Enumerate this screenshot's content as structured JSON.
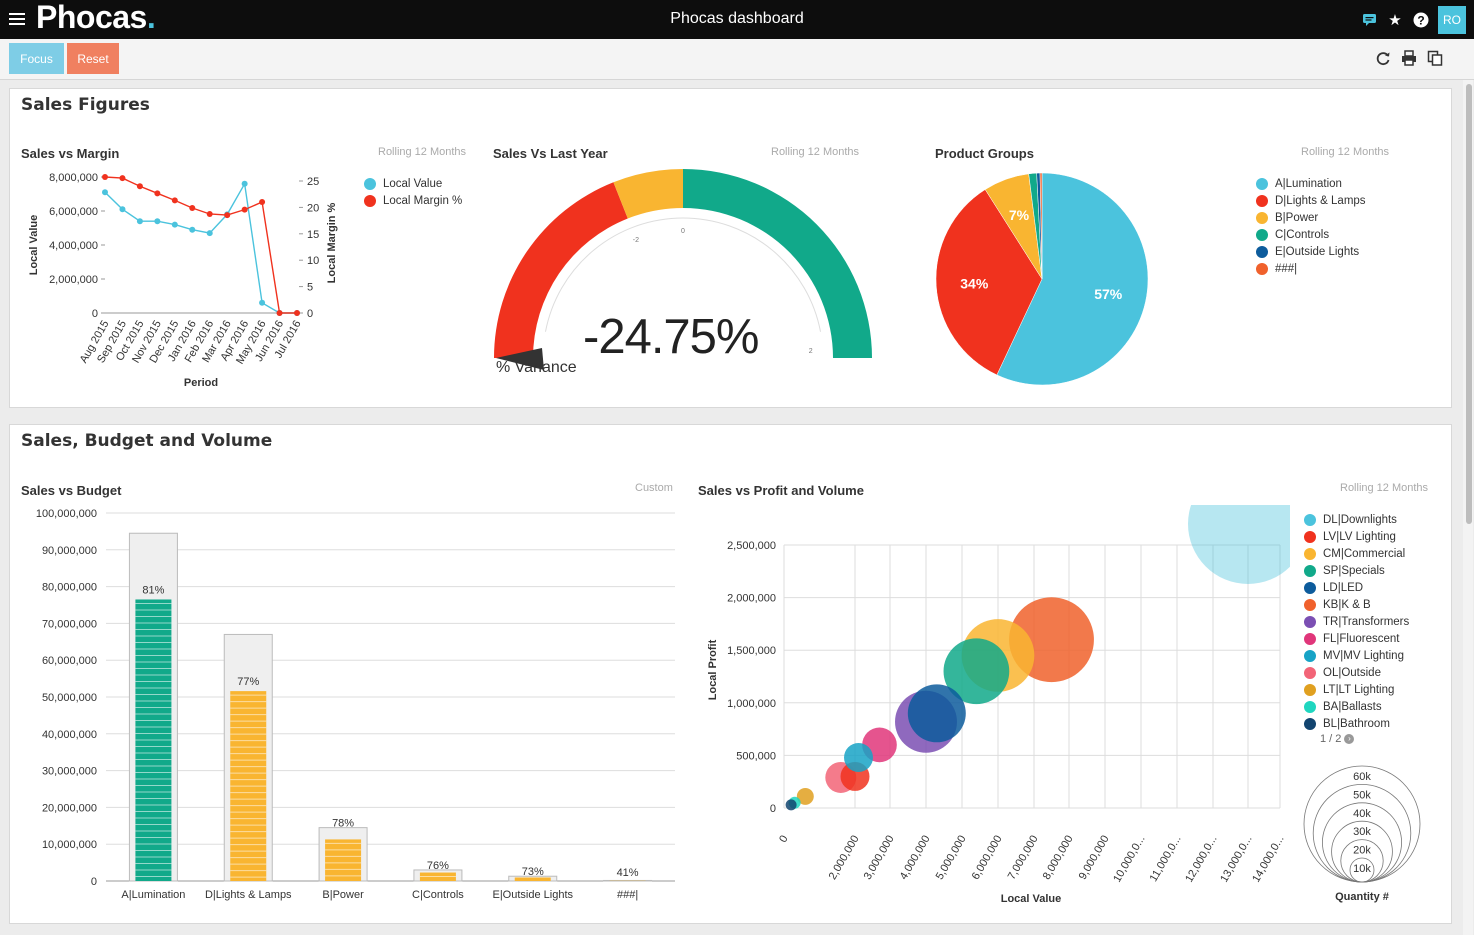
{
  "app": {
    "logo_text": "Phocas",
    "logo_dot": ".",
    "title": "Phocas dashboard",
    "user_initials": "RO",
    "toolbar": {
      "focus_label": "Focus",
      "reset_label": "Reset"
    },
    "icons": [
      "menu-icon",
      "chat-icon",
      "star-icon",
      "help-icon",
      "refresh-icon",
      "print-icon",
      "copy-icon"
    ],
    "colors": {
      "topbar": "#0d0d0d",
      "accent": "#4bc3dd",
      "focus": "#7ecde6",
      "reset": "#f08060"
    }
  },
  "sections": {
    "sales_figures": "Sales Figures",
    "sales_budget_volume": "Sales, Budget and Volume"
  },
  "widgets": {
    "sales_margin": {
      "title": "Sales vs Margin",
      "note": "Rolling 12 Months"
    },
    "sales_last_year": {
      "title": "Sales Vs Last Year",
      "note": "Rolling 12 Months"
    },
    "product_groups": {
      "title": "Product Groups",
      "note": "Rolling 12 Months"
    },
    "sales_budget": {
      "title": "Sales vs Budget",
      "note": "Custom"
    },
    "profit_volume": {
      "title": "Sales vs Profit and Volume",
      "note": "Rolling 12 Months",
      "pager": "1 / 2"
    }
  },
  "chart_data": [
    {
      "id": "sales_margin",
      "type": "line",
      "title": "Sales vs Margin",
      "xlabel": "Period",
      "ylabel": "Local Value",
      "y2label": "Local Margin %",
      "categories": [
        "Aug 2015",
        "Sep 2015",
        "Oct 2015",
        "Nov 2015",
        "Dec 2015",
        "Jan 2016",
        "Feb 2016",
        "Mar 2016",
        "Apr 2016",
        "May 2016",
        "Jun 2016",
        "Jul 2016"
      ],
      "ylim": [
        0,
        8000000
      ],
      "y_ticks": [
        "8,000,000",
        "6,000,000",
        "4,000,000",
        "2,000,000",
        "0"
      ],
      "y2lim": [
        0,
        25
      ],
      "y2_ticks": [
        "25",
        "20",
        "15",
        "10",
        "5",
        "0"
      ],
      "series": [
        {
          "name": "Local Value",
          "color": "#4bc3dd",
          "axis": "left",
          "values": [
            7100000,
            6100000,
            5400000,
            5400000,
            5200000,
            4900000,
            4700000,
            5800000,
            7600000,
            600000,
            0,
            0
          ]
        },
        {
          "name": "Local Margin %",
          "color": "#f0321e",
          "axis": "right",
          "values": [
            25,
            24.8,
            23.3,
            22,
            20.7,
            19.3,
            18.2,
            18,
            19,
            20.4,
            0,
            0
          ]
        }
      ],
      "legend": "right"
    },
    {
      "id": "sales_last_year",
      "type": "gauge",
      "value_label": "-24.75%",
      "value": -24.75,
      "label": "% Variance",
      "tick_labels": [
        "-2",
        "0",
        "2"
      ],
      "bands": [
        {
          "color": "#f0321e",
          "from": 0,
          "to": 0.38
        },
        {
          "color": "#f9b531",
          "from": 0.38,
          "to": 0.5
        },
        {
          "color": "#11a98a",
          "from": 0.5,
          "to": 1
        }
      ]
    },
    {
      "id": "product_groups",
      "type": "pie",
      "title": "Product Groups",
      "slices": [
        {
          "name": "A|Lumination",
          "value": 57,
          "label": "57%",
          "color": "#4bc3dd"
        },
        {
          "name": "D|Lights & Lamps",
          "value": 34,
          "label": "34%",
          "color": "#f0321e"
        },
        {
          "name": "B|Power",
          "value": 7,
          "label": "7%",
          "color": "#f9b531"
        },
        {
          "name": "C|Controls",
          "value": 1.2,
          "label": "",
          "color": "#11a98a"
        },
        {
          "name": "E|Outside Lights",
          "value": 0.5,
          "label": "",
          "color": "#0d5c9c"
        },
        {
          "name": "###|",
          "value": 0.3,
          "label": "",
          "color": "#f0612c"
        }
      ],
      "legend": "right"
    },
    {
      "id": "sales_budget",
      "type": "bar",
      "title": "Sales vs Budget",
      "categories": [
        "A|Lumination",
        "D|Lights & Lamps",
        "B|Power",
        "C|Controls",
        "E|Outside Lights",
        "###|"
      ],
      "budget": [
        94500000,
        67000000,
        14500000,
        3000000,
        1300000,
        150000
      ],
      "sales": [
        76500000,
        51600000,
        11300000,
        2300000,
        950000,
        60000
      ],
      "pct_labels": [
        "81%",
        "77%",
        "78%",
        "76%",
        "73%",
        "41%"
      ],
      "colors": [
        "#11a98a",
        "#f9b531",
        "#f9b531",
        "#f9b531",
        "#f9b531",
        "#f9b531"
      ],
      "ylim": [
        0,
        100000000
      ],
      "y_ticks": [
        "100,000,000",
        "90,000,000",
        "80,000,000",
        "70,000,000",
        "60,000,000",
        "50,000,000",
        "40,000,000",
        "30,000,000",
        "20,000,000",
        "10,000,000",
        "0"
      ]
    },
    {
      "id": "profit_volume",
      "type": "scatter",
      "title": "Sales vs Profit and Volume",
      "xlabel": "Local Value",
      "ylabel": "Local Profit",
      "size_label": "Quantity #",
      "x_ticks": [
        "0",
        "2,000,000",
        "3,000,000",
        "4,000,000",
        "5,000,000",
        "6,000,000",
        "7,000,000",
        "8,000,000",
        "9,000,000",
        "10,000,0...",
        "11,000,0...",
        "12,000,0...",
        "13,000,0...",
        "14,000,0..."
      ],
      "y_ticks": [
        "2,500,000",
        "2,000,000",
        "1,500,000",
        "1,000,000",
        "500,000",
        "0"
      ],
      "ylim": [
        0,
        2500000
      ],
      "size_ticks": [
        "60k",
        "50k",
        "40k",
        "30k",
        "20k",
        "10k"
      ],
      "points": [
        {
          "name": "DL|Downlights",
          "x": 13000000,
          "y": 2700000,
          "size": 60000,
          "color": "#4bc3dd"
        },
        {
          "name": "LV|LV Lighting",
          "x": 2000000,
          "y": 300000,
          "size": 3500,
          "color": "#f0321e"
        },
        {
          "name": "CM|Commercial",
          "x": 6000000,
          "y": 1450000,
          "size": 22000,
          "color": "#f9b531"
        },
        {
          "name": "SP|Specials",
          "x": 5400000,
          "y": 1300000,
          "size": 18000,
          "color": "#11a98a"
        },
        {
          "name": "LD|LED",
          "x": 4300000,
          "y": 900000,
          "size": 14000,
          "color": "#0d5c9c"
        },
        {
          "name": "KB|K & B",
          "x": 7500000,
          "y": 1600000,
          "size": 30000,
          "color": "#f0612c"
        },
        {
          "name": "TR|Transformers",
          "x": 4000000,
          "y": 820000,
          "size": 16000,
          "color": "#7b4fb3"
        },
        {
          "name": "FL|Fluorescent",
          "x": 2700000,
          "y": 600000,
          "size": 5000,
          "color": "#e0367a"
        },
        {
          "name": "MV|MV Lighting",
          "x": 2100000,
          "y": 480000,
          "size": 3500,
          "color": "#17a3c6"
        },
        {
          "name": "OL|Outside",
          "x": 1600000,
          "y": 290000,
          "size": 4000,
          "color": "#f26477"
        },
        {
          "name": "LT|LT Lighting",
          "x": 600000,
          "y": 110000,
          "size": 1200,
          "color": "#e0a020"
        },
        {
          "name": "BA|Ballasts",
          "x": 300000,
          "y": 50000,
          "size": 600,
          "color": "#1fd6bf"
        },
        {
          "name": "BL|Bathroom",
          "x": 200000,
          "y": 30000,
          "size": 500,
          "color": "#12446f"
        }
      ]
    }
  ]
}
